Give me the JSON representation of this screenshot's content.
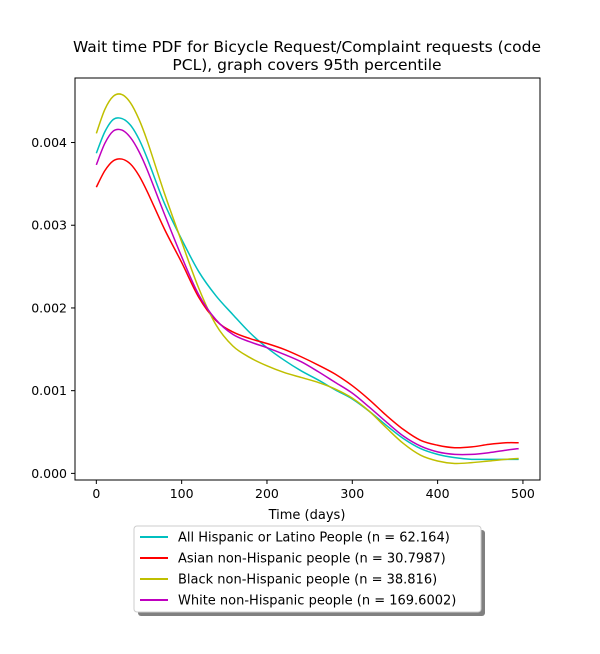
{
  "chart_data": {
    "type": "line",
    "title_lines": [
      "Wait time PDF for Bicycle Request/Complaint  requests (code",
      "PCL), graph covers 95th percentile"
    ],
    "xlabel": "Time (days)",
    "ylabel": "",
    "xlim": [
      -25,
      520
    ],
    "ylim": [
      -8e-05,
      0.00478
    ],
    "x_ticks": [
      0,
      100,
      200,
      300,
      400,
      500
    ],
    "x_tick_labels": [
      "0",
      "100",
      "200",
      "300",
      "400",
      "500"
    ],
    "y_ticks": [
      0,
      0.001,
      0.002,
      0.003,
      0.004
    ],
    "y_tick_labels": [
      "0.000",
      "0.001",
      "0.002",
      "0.003",
      "0.004"
    ],
    "grid": false,
    "legend_position": "below plot, centered, with shadow",
    "x": [
      0,
      10,
      20,
      30,
      40,
      50,
      60,
      80,
      100,
      120,
      140,
      160,
      180,
      200,
      220,
      240,
      260,
      280,
      300,
      320,
      340,
      360,
      380,
      400,
      420,
      440,
      460,
      480,
      495
    ],
    "series": [
      {
        "name": "All Hispanic or Latino People (n = 62.164)",
        "color": "#00bfbf",
        "values": [
          0.00387,
          0.00413,
          0.00428,
          0.00429,
          0.00421,
          0.00404,
          0.0038,
          0.00326,
          0.00283,
          0.00244,
          0.00215,
          0.00192,
          0.0017,
          0.00152,
          0.00137,
          0.00124,
          0.00113,
          0.00101,
          0.0009,
          0.00075,
          0.00058,
          0.00042,
          0.0003,
          0.00023,
          0.00019,
          0.00017,
          0.00017,
          0.00017,
          0.00017
        ]
      },
      {
        "name": "Asian non-Hispanic people (n = 30.7987)",
        "color": "#ff0000",
        "values": [
          0.00346,
          0.00366,
          0.00378,
          0.0038,
          0.00374,
          0.0036,
          0.0034,
          0.00295,
          0.00255,
          0.00213,
          0.00185,
          0.00171,
          0.00163,
          0.00157,
          0.0015,
          0.00141,
          0.00131,
          0.0012,
          0.00106,
          0.00089,
          0.0007,
          0.00053,
          0.0004,
          0.00034,
          0.00031,
          0.00032,
          0.00035,
          0.00037,
          0.00037
        ]
      },
      {
        "name": "Black non-Hispanic people (n = 38.816)",
        "color": "#bfbf00",
        "values": [
          0.00411,
          0.0044,
          0.00456,
          0.00458,
          0.00448,
          0.00428,
          0.00401,
          0.00338,
          0.0028,
          0.00224,
          0.0018,
          0.00154,
          0.0014,
          0.0013,
          0.00122,
          0.00116,
          0.0011,
          0.00102,
          0.00091,
          0.00075,
          0.00055,
          0.00036,
          0.00022,
          0.00015,
          0.00012,
          0.00013,
          0.00015,
          0.00017,
          0.00018
        ]
      },
      {
        "name": "White non-Hispanic people (n = 169.6002)",
        "color": "#bf00bf",
        "values": [
          0.00373,
          0.00399,
          0.00414,
          0.00415,
          0.00406,
          0.00389,
          0.00366,
          0.00313,
          0.00262,
          0.00216,
          0.00186,
          0.00168,
          0.00159,
          0.00152,
          0.00144,
          0.00135,
          0.00123,
          0.0011,
          0.00097,
          0.0008,
          0.00062,
          0.00045,
          0.00033,
          0.00026,
          0.00023,
          0.00023,
          0.00025,
          0.00028,
          0.0003
        ]
      }
    ]
  }
}
